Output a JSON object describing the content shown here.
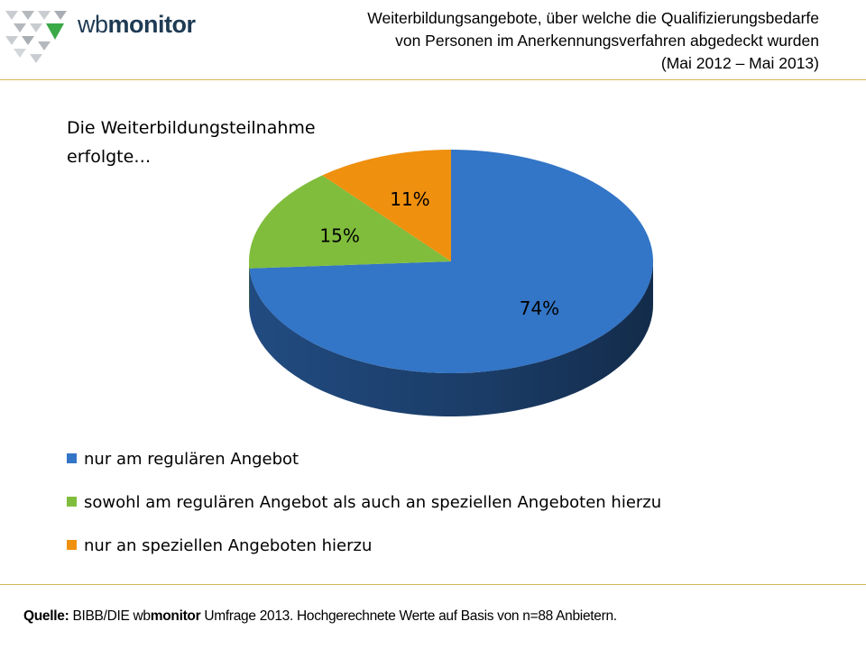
{
  "header": {
    "logo_prefix": "wb",
    "logo_bold": "monitor",
    "title_lines": [
      "Weiterbildungsangebote,  über  welche  die  Qualifizierungsbedarfe",
      "von Personen im Anerkennungsverfahren  abgedeckt  wurden",
      "(Mai 2012 – Mai 2013)"
    ]
  },
  "chart_data": {
    "type": "pie",
    "intro_lines": [
      "Die Weiterbildungsteilnahme",
      "erfolgte…"
    ],
    "slices": [
      {
        "label": "nur am regulären Angebot",
        "value": 74,
        "display": "74%",
        "color": "#3375c6",
        "side": "#234f87"
      },
      {
        "label": "sowohl am regulären Angebot als auch an speziellen Angeboten hierzu",
        "value": 15,
        "display": "15%",
        "color": "#80bd3c",
        "side": "#5a8a26"
      },
      {
        "label": "nur an speziellen Angeboten hierzu",
        "value": 11,
        "display": "11%",
        "color": "#ef900f",
        "side": "#b06a08"
      }
    ],
    "legend_position": "bottom"
  },
  "source": {
    "label": "Quelle:",
    "pre": " BIBB/DIE wb",
    "bold": "monitor",
    "post": " Umfrage 2013. Hochgerechnete Werte auf Basis von n=88 Anbietern."
  }
}
